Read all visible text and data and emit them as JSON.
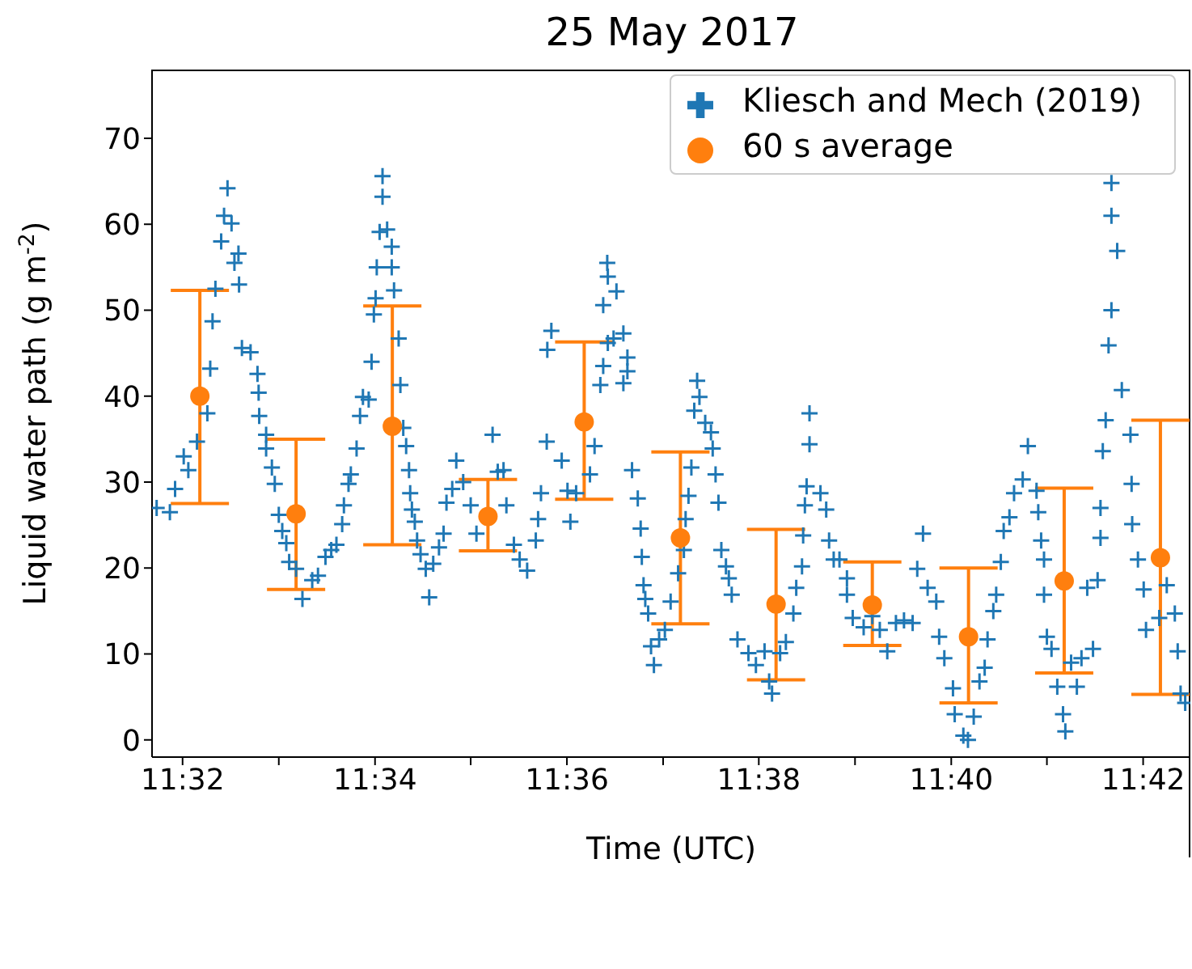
{
  "chart_data": {
    "type": "scatter",
    "title": "25 May 2017",
    "xlabel": "Time (UTC)",
    "ylabel": "Liquid water path (g m$^{-2}$)",
    "xlim": [
      11.528,
      11.7082
    ],
    "ylim": [
      -2,
      78
    ],
    "xticks": [
      {
        "value": 11.5333,
        "label": "11:32"
      },
      {
        "value": 11.55,
        "label": null
      },
      {
        "value": 11.5667,
        "label": "11:34"
      },
      {
        "value": 11.5833,
        "label": null
      },
      {
        "value": 11.6,
        "label": "11:36"
      },
      {
        "value": 11.6167,
        "label": null
      },
      {
        "value": 11.6333,
        "label": "11:38"
      },
      {
        "value": 11.65,
        "label": null
      },
      {
        "value": 11.6667,
        "label": "11:40"
      },
      {
        "value": 11.6833,
        "label": null
      },
      {
        "value": 11.7,
        "label": "11:42"
      }
    ],
    "yticks": [
      0,
      10,
      20,
      30,
      40,
      50,
      60,
      70
    ],
    "legend": "top right",
    "series": [
      {
        "name": "Kliesch and Mech (2019)",
        "color": "#1f77b4",
        "marker": "cross",
        "x": [
          11.5288,
          11.5311,
          11.532,
          11.5335,
          11.5343,
          11.5358,
          11.5376,
          11.5381,
          11.5385,
          11.539,
          11.54,
          11.5405,
          11.5411,
          11.5418,
          11.5423,
          11.543,
          11.5431,
          11.5436,
          11.5451,
          11.5463,
          11.5465,
          11.5466,
          11.5478,
          11.5478,
          11.5488,
          11.5493,
          11.55,
          11.5506,
          11.5513,
          11.5518,
          11.553,
          11.5541,
          11.5558,
          11.5568,
          11.5581,
          11.5591,
          11.56,
          11.561,
          11.5613,
          11.5621,
          11.5625,
          11.5635,
          11.5641,
          11.5646,
          11.5656,
          11.5661,
          11.5665,
          11.5668,
          11.567,
          11.5675,
          11.568,
          11.568,
          11.5688,
          11.5696,
          11.5696,
          11.57,
          11.5708,
          11.5711,
          11.5716,
          11.5721,
          11.5726,
          11.5728,
          11.5731,
          11.5736,
          11.574,
          11.5746,
          11.5755,
          11.5761,
          11.5768,
          11.5778,
          11.5786,
          11.5791,
          11.5801,
          11.5808,
          11.582,
          11.5833,
          11.5843,
          11.5871,
          11.588,
          11.589,
          11.5895,
          11.5908,
          11.5918,
          11.5931,
          11.5946,
          11.595,
          11.5955,
          11.5965,
          11.5966,
          11.5973,
          11.5991,
          11.6001,
          11.6006,
          11.6016,
          11.604,
          11.6048,
          11.6058,
          11.6063,
          11.6063,
          11.607,
          11.6071,
          11.6071,
          11.6081,
          11.6086,
          11.6098,
          11.6098,
          11.6105,
          11.6105,
          11.6113,
          11.6123,
          11.6128,
          11.613,
          11.6133,
          11.6136,
          11.6141,
          11.6146,
          11.6151,
          11.616,
          11.617,
          11.618,
          11.6193,
          11.6203,
          11.6206,
          11.6211,
          11.6216,
          11.6221,
          11.6226,
          11.623,
          11.624,
          11.625,
          11.6253,
          11.6258,
          11.6263,
          11.6268,
          11.6276,
          11.6281,
          11.6286,
          11.6296,
          11.6315,
          11.6328,
          11.6343,
          11.6351,
          11.6356,
          11.637,
          11.638,
          11.6393,
          11.6398,
          11.6408,
          11.641,
          11.6413,
          11.6416,
          11.6421,
          11.6421,
          11.644,
          11.645,
          11.6455,
          11.6463,
          11.6473,
          11.6486,
          11.6486,
          11.6496,
          11.6515,
          11.653,
          11.6543,
          11.6556,
          11.6571,
          11.6585,
          11.66,
          11.6608,
          11.6618,
          11.6626,
          11.6641,
          11.6646,
          11.6655,
          11.667,
          11.6673,
          11.6688,
          11.6696,
          11.6706,
          11.6716,
          11.6725,
          11.673,
          11.674,
          11.6745,
          11.6753,
          11.6758,
          11.6768,
          11.6776,
          11.6791,
          11.68,
          11.6815,
          11.6818,
          11.6823,
          11.6828,
          11.6828,
          11.6833,
          11.6841,
          11.6851,
          11.6861,
          11.6865,
          11.6875,
          11.6885,
          11.6893,
          11.6903,
          11.6913,
          11.6921,
          11.6926,
          11.6926,
          11.693,
          11.6935,
          11.694,
          11.6945,
          11.6945,
          11.6945,
          11.6955,
          11.6963,
          11.6978,
          11.698,
          11.6981,
          11.6991,
          11.7001,
          11.7005,
          11.7028,
          11.7041,
          11.7055,
          11.706,
          11.7065,
          11.7073
        ],
        "values": [
          27.0,
          26.5,
          29.2,
          33,
          31.4,
          34.7,
          38,
          43.2,
          48.7,
          52.5,
          58,
          61,
          64.2,
          60.1,
          55.5,
          56.6,
          53,
          45.6,
          45.1,
          42.6,
          40.4,
          37.7,
          35.5,
          33.9,
          31.7,
          29.8,
          26.2,
          24.3,
          22.9,
          20.7,
          19.9,
          16.4,
          18.6,
          19.1,
          21.3,
          22.1,
          22.7,
          25.1,
          27.3,
          29.8,
          30.9,
          33.9,
          37.7,
          39.9,
          39.6,
          44,
          49.5,
          51.4,
          55,
          59.1,
          63.2,
          65.6,
          59.4,
          57.4,
          55,
          52.3,
          46.7,
          41.3,
          36.3,
          34.2,
          31.4,
          28.7,
          26.8,
          25.4,
          23.2,
          21.6,
          19.9,
          16.6,
          20.5,
          22.4,
          24.0,
          27.6,
          29.2,
          32.5,
          30,
          27.3,
          24.0,
          35.5,
          31.2,
          31.4,
          27.3,
          22.7,
          21.0,
          19.7,
          23.2,
          25.7,
          28.7,
          34.7,
          45.4,
          47.6,
          32.5,
          29.0,
          25.4,
          28.7,
          30.9,
          34.2,
          41.3,
          43.5,
          50.6,
          55.5,
          53.9,
          46.2,
          46.7,
          52.2,
          47.3,
          41.5,
          44.5,
          42.9,
          31.4,
          28.1,
          24.6,
          21.3,
          18.0,
          16.4,
          14.7,
          10.9,
          8.7,
          11.7,
          12.8,
          16.1,
          19.4,
          22.1,
          25.7,
          28.4,
          31.7,
          38.3,
          41.8,
          39.9,
          36.9,
          35.8,
          33.9,
          30.9,
          27.6,
          22.1,
          20.2,
          18.8,
          16.9,
          11.7,
          10.1,
          8.7,
          10.3,
          6.8,
          5.4,
          10.1,
          11.4,
          14.7,
          17.7,
          20.2,
          23.8,
          27.3,
          29.5,
          34.4,
          38.0,
          28.7,
          26.8,
          23.2,
          21.0,
          21.0,
          18.8,
          16.9,
          14.2,
          13.1,
          14.4,
          12.8,
          10.3,
          13.6,
          13.9,
          13.6,
          19.9,
          24.0,
          17.7,
          16.1,
          12.0,
          9.5,
          6.0,
          3.0,
          0.5,
          0,
          2.7,
          6.8,
          8.4,
          11.7,
          15.0,
          16.9,
          20.7,
          24.3,
          25.9,
          28.7,
          30.3,
          34.2,
          29.0,
          26.5,
          23.2,
          21.0,
          16.9,
          12.0,
          10.6,
          6.2,
          3.0,
          1.0,
          9.0,
          6.2,
          9.5,
          17.7,
          10.6,
          18.6,
          23.5,
          27.0,
          33.6,
          37.2,
          45.9,
          50.0,
          61,
          64.8,
          56.9,
          40.7,
          35.5,
          29.8,
          25.1,
          21.0,
          17.5,
          12.8,
          14.2,
          18.0,
          14.7,
          10.3,
          5.4,
          4.3
        ]
      },
      {
        "name": "60 s average",
        "color": "#ff7f0e",
        "marker": "circle",
        "x": [
          11.5363,
          11.553,
          11.5697,
          11.5863,
          11.603,
          11.6197,
          11.6363,
          11.653,
          11.6697,
          11.6863,
          11.703
        ],
        "values": [
          40,
          26.3,
          36.5,
          26,
          37,
          23.5,
          15.8,
          15.7,
          12,
          18.5,
          21.2
        ],
        "errors": [
          [
            27.5,
            52.3
          ],
          [
            17.5,
            35
          ],
          [
            22.7,
            50.5
          ],
          [
            22,
            30.3
          ],
          [
            28,
            46.3
          ],
          [
            13.5,
            33.5
          ],
          [
            7,
            24.5
          ],
          [
            11,
            20.7
          ],
          [
            4.3,
            20
          ],
          [
            7.8,
            29.3
          ],
          [
            5.3,
            37.2
          ]
        ]
      }
    ]
  }
}
